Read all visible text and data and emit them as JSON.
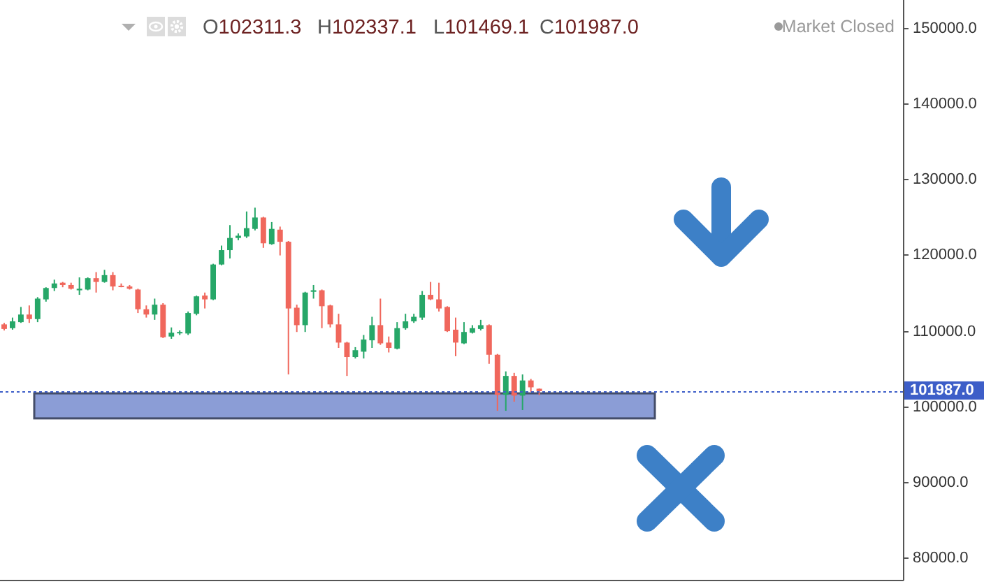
{
  "chart_data": {
    "type": "candlestick",
    "categories": [
      null,
      null,
      null,
      null,
      null,
      null,
      null,
      null,
      null,
      null,
      null,
      null,
      null,
      null,
      null,
      null,
      null,
      null,
      null,
      null,
      null,
      null,
      null,
      null,
      null,
      null,
      null,
      null,
      null,
      null,
      null,
      null,
      null,
      null,
      null,
      null,
      null,
      null,
      null,
      null,
      null,
      null,
      null,
      null,
      null,
      null,
      null,
      null,
      null,
      null,
      null,
      null,
      null,
      null,
      null,
      null,
      null,
      null,
      null,
      null,
      null,
      null,
      null,
      null,
      null,
      null,
      null,
      null,
      null,
      null,
      null,
      null,
      null,
      null,
      null,
      null,
      null,
      null,
      null,
      null,
      null,
      null,
      null,
      null,
      null,
      null,
      null,
      null,
      null,
      null,
      null,
      null,
      null,
      null,
      null,
      null,
      null,
      null,
      null,
      null,
      null,
      null,
      null,
      null,
      null,
      null,
      null,
      null
    ],
    "ohlc": [
      [
        110800,
        111000,
        110000,
        110200
      ],
      [
        110300,
        111700,
        110100,
        111200
      ],
      [
        111100,
        113100,
        111000,
        112100
      ],
      [
        112100,
        113300,
        111000,
        111500
      ],
      [
        111500,
        114400,
        111100,
        114200
      ],
      [
        114100,
        115700,
        113800,
        115600
      ],
      [
        115600,
        116700,
        115200,
        116200
      ],
      [
        116300,
        116400,
        115700,
        116000
      ],
      [
        116000,
        116300,
        115400,
        115500
      ],
      [
        115300,
        117000,
        114700,
        115500
      ],
      [
        115400,
        117000,
        115300,
        116900
      ],
      [
        116900,
        117700,
        115000,
        116400
      ],
      [
        116400,
        118000,
        116300,
        117300
      ],
      [
        117300,
        117700,
        115300,
        115800
      ],
      [
        115900,
        116200,
        115700,
        115800
      ],
      [
        115800,
        116000,
        115400,
        115500
      ],
      [
        115400,
        115500,
        112300,
        112800
      ],
      [
        112800,
        113300,
        111700,
        112100
      ],
      [
        112100,
        114200,
        111400,
        113400
      ],
      [
        113400,
        113600,
        109000,
        109100
      ],
      [
        109200,
        110400,
        108900,
        109700
      ],
      [
        109700,
        110000,
        109400,
        109800
      ],
      [
        109600,
        112500,
        109400,
        112300
      ],
      [
        112200,
        114600,
        112000,
        114500
      ],
      [
        114600,
        115000,
        112900,
        114100
      ],
      [
        114100,
        118800,
        114000,
        118700
      ],
      [
        118700,
        121200,
        118600,
        120600
      ],
      [
        120600,
        123900,
        119500,
        122200
      ],
      [
        122200,
        122800,
        121900,
        122500
      ],
      [
        122400,
        125700,
        122200,
        123500
      ],
      [
        123400,
        126200,
        123200,
        124900
      ],
      [
        124900,
        125000,
        120900,
        121500
      ],
      [
        121400,
        124300,
        121300,
        123400
      ],
      [
        123300,
        123700,
        119900,
        121700
      ],
      [
        121700,
        121800,
        104200,
        112900
      ],
      [
        113000,
        113400,
        109800,
        110700
      ],
      [
        110700,
        115100,
        109800,
        115000
      ],
      [
        115100,
        116000,
        114200,
        115300
      ],
      [
        115300,
        115400,
        110300,
        113200
      ],
      [
        113300,
        113400,
        110400,
        110800
      ],
      [
        110800,
        112200,
        107700,
        108400
      ],
      [
        108400,
        108500,
        104000,
        106500
      ],
      [
        106500,
        107800,
        106300,
        107400
      ],
      [
        107200,
        109400,
        106300,
        108800
      ],
      [
        108700,
        111800,
        107700,
        110700
      ],
      [
        110700,
        114200,
        108100,
        108300
      ],
      [
        108400,
        109200,
        107100,
        107700
      ],
      [
        107600,
        111100,
        107500,
        110300
      ],
      [
        110300,
        112200,
        110100,
        111200
      ],
      [
        111200,
        112200,
        111000,
        111800
      ],
      [
        111700,
        115200,
        111400,
        114700
      ],
      [
        114700,
        116400,
        114000,
        114100
      ],
      [
        114100,
        116300,
        112500,
        112900
      ],
      [
        113100,
        113200,
        109800,
        109900
      ],
      [
        110100,
        111700,
        106600,
        108400
      ],
      [
        108300,
        111100,
        108200,
        109800
      ],
      [
        109700,
        110700,
        109600,
        110300
      ],
      [
        110200,
        111400,
        110000,
        110700
      ],
      [
        110700,
        110800,
        105600,
        106800
      ],
      [
        106800,
        106900,
        99400,
        101500
      ],
      [
        101500,
        104600,
        99400,
        104000
      ],
      [
        104000,
        104400,
        100600,
        101400
      ],
      [
        101400,
        104200,
        99500,
        103400
      ],
      [
        103400,
        103600,
        101900,
        102500
      ],
      [
        102311.3,
        102337.1,
        101469.1,
        101987.0
      ],
      null,
      null,
      null,
      null,
      null,
      null,
      null,
      null,
      null,
      null,
      null,
      null,
      null,
      null,
      null,
      null,
      null,
      null,
      null,
      null,
      null,
      null,
      null,
      null,
      null,
      null,
      null,
      null,
      null,
      null,
      null,
      null,
      null,
      null,
      null,
      null,
      null,
      null,
      null,
      null,
      null,
      null,
      null
    ],
    "colors": [
      "#f0675c",
      "#26a768",
      "#26a768",
      "#f0675c",
      "#26a768",
      "#26a768",
      "#26a768",
      "#f0675c",
      "#f0675c",
      "#26a768",
      "#26a768",
      "#f0675c",
      "#26a768",
      "#f0675c",
      "#f0675c",
      "#f0675c",
      "#f0675c",
      "#f0675c",
      "#26a768",
      "#f0675c",
      "#26a768",
      "#26a768",
      "#26a768",
      "#26a768",
      "#f0675c",
      "#26a768",
      "#26a768",
      "#26a768",
      "#26a768",
      "#26a768",
      "#26a768",
      "#f0675c",
      "#26a768",
      "#f0675c",
      "#f0675c",
      "#f0675c",
      "#26a768",
      "#26a768",
      "#f0675c",
      "#f0675c",
      "#f0675c",
      "#f0675c",
      "#26a768",
      "#26a768",
      "#26a768",
      "#f0675c",
      "#f0675c",
      "#26a768",
      "#26a768",
      "#26a768",
      "#26a768",
      "#f0675c",
      "#f0675c",
      "#f0675c",
      "#f0675c",
      "#26a768",
      "#26a768",
      "#26a768",
      "#f0675c",
      "#f0675c",
      "#26a768",
      "#f0675c",
      "#26a768",
      "#f0675c",
      "#f0675c",
      null,
      null,
      null,
      null,
      null,
      null,
      null,
      null,
      null,
      null,
      null,
      null,
      null,
      null,
      null,
      null,
      null,
      null,
      null,
      null,
      null,
      null,
      null,
      null,
      null,
      null,
      null,
      null,
      null,
      null,
      null,
      null,
      null,
      null,
      null,
      null,
      null,
      null,
      null,
      null,
      null,
      null,
      null
    ],
    "ylim": [
      77100,
      153600
    ],
    "yticks": [
      {
        "value": 80000,
        "label": "80000.0"
      },
      {
        "value": 90000,
        "label": "90000.0"
      },
      {
        "value": 100000,
        "label": "100000.0"
      },
      {
        "value": 110000,
        "label": "110000.0"
      },
      {
        "value": 120000,
        "label": "120000.0"
      },
      {
        "value": 130000,
        "label": "130000.0"
      },
      {
        "value": 140000,
        "label": "140000.0"
      },
      {
        "value": 150000,
        "label": "150000.0"
      }
    ],
    "tick_labels": "y",
    "ref_lines": [
      {
        "axis": "y",
        "value": 101987.0,
        "label": "101987.0",
        "color": "#3d5ec8",
        "line_style": "dotted"
      }
    ],
    "bands": [
      {
        "axis": "y",
        "from": 98400,
        "to": 101700,
        "color": "#8b9dd6"
      }
    ],
    "annotations": [
      "O102311.3",
      "H102337.1",
      "L101469.1",
      "C101987.0",
      "Market Closed"
    ]
  }
}
